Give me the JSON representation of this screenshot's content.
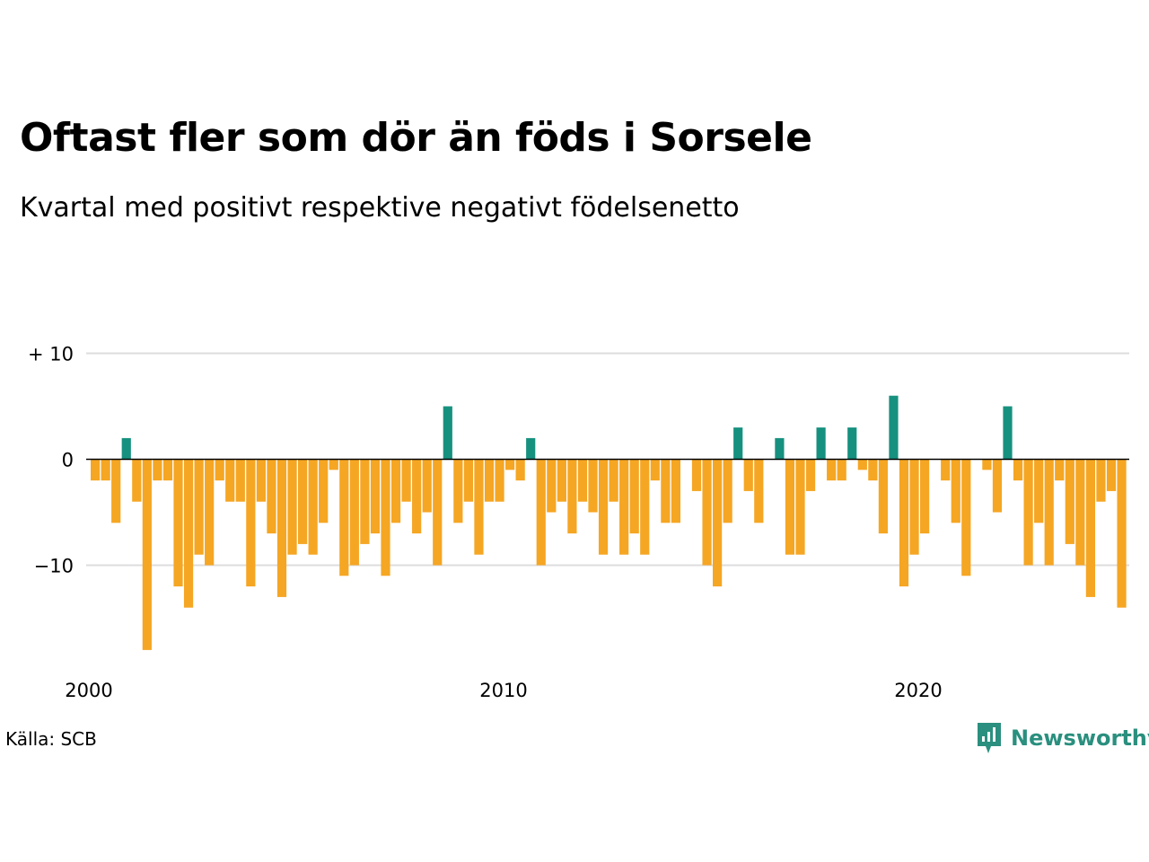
{
  "title": "Oftast fler som dör än föds i Sorsele",
  "subtitle": "Kvartal med positivt respektive negativt födelsenetto",
  "source": "Källa: SCB",
  "brand": {
    "name": "Newsworthy",
    "icon": "newsworthy-logo-icon",
    "color": "#2a8f7e"
  },
  "chart_data": {
    "type": "bar",
    "x_start": "2000 Q1",
    "x_tick_labels": [
      "2000",
      "2010",
      "2020"
    ],
    "y_tick_labels": [
      "+ 10",
      "0",
      "−10"
    ],
    "y_ticks": [
      10,
      0,
      -10
    ],
    "ylim": [
      -18,
      10
    ],
    "grid": true,
    "colors": {
      "positive": "#17917f",
      "negative": "#f5a623",
      "grid": "#dddddd",
      "baseline": "#000000"
    },
    "values": [
      -2,
      -2,
      -6,
      2,
      -4,
      -18,
      -2,
      -2,
      -12,
      -14,
      -9,
      -10,
      -2,
      -4,
      -4,
      -12,
      -4,
      -7,
      -13,
      -9,
      -8,
      -9,
      -6,
      -1,
      -11,
      -10,
      -8,
      -7,
      -11,
      -6,
      -4,
      -7,
      -5,
      -10,
      5,
      -6,
      -4,
      -9,
      -4,
      -4,
      -1,
      -2,
      2,
      -10,
      -5,
      -4,
      -7,
      -4,
      -5,
      -9,
      -4,
      -9,
      -7,
      -9,
      -2,
      -6,
      -6,
      0,
      -3,
      -10,
      -12,
      -6,
      3,
      -3,
      -6,
      0,
      2,
      -9,
      -9,
      -3,
      3,
      -2,
      -2,
      3,
      -1,
      -2,
      -7,
      6,
      -12,
      -9,
      -7,
      0,
      -2,
      -6,
      -11,
      0,
      -1,
      -5,
      5,
      -2,
      -10,
      -6,
      -10,
      -2,
      -8,
      -10,
      -13,
      -4,
      -3,
      -14
    ]
  }
}
